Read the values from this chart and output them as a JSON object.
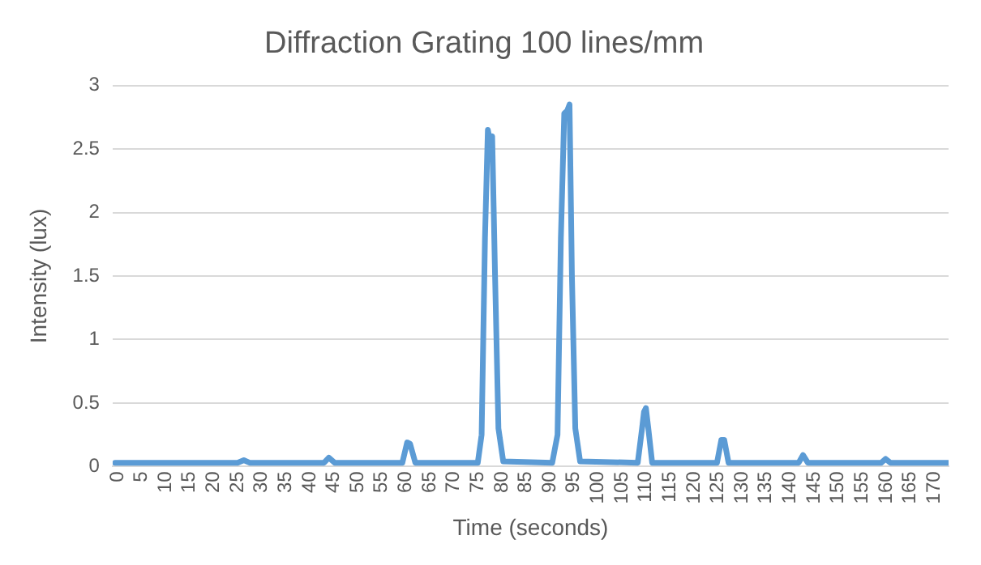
{
  "chart_data": {
    "type": "line",
    "title": "Diffraction Grating 100 lines/mm",
    "xlabel": "Time (seconds)",
    "ylabel": "Intensity (lux)",
    "x": [
      -0.5,
      25,
      26.3,
      27.5,
      43,
      44,
      45.2,
      59.3,
      60.3,
      60.9,
      62,
      75,
      75.8,
      76.5,
      77.1,
      77.6,
      78,
      78.6,
      79.3,
      80.3,
      90.5,
      91.6,
      92.3,
      93,
      93.6,
      94.1,
      94.6,
      95.3,
      96.3,
      108.3,
      109.2,
      109.6,
      110,
      110.5,
      111.3,
      124.8,
      125.7,
      126.3,
      127.2,
      141.8,
      142.7,
      143.7,
      159,
      159.9,
      160.9,
      172.9
    ],
    "series": [
      {
        "color": "#5b9bd5",
        "values": [
          0.03,
          0.03,
          0.05,
          0.03,
          0.03,
          0.07,
          0.03,
          0.03,
          0.19,
          0.18,
          0.03,
          0.03,
          0.25,
          1.8,
          2.65,
          2.55,
          2.6,
          1.5,
          0.3,
          0.04,
          0.03,
          0.25,
          1.8,
          2.78,
          2.8,
          2.85,
          1.5,
          0.3,
          0.04,
          0.03,
          0.3,
          0.43,
          0.46,
          0.3,
          0.03,
          0.03,
          0.21,
          0.21,
          0.03,
          0.03,
          0.09,
          0.03,
          0.03,
          0.06,
          0.03,
          0.03
        ]
      }
    ],
    "xlim": [
      -1,
      173
    ],
    "xticks": [
      0,
      5,
      10,
      15,
      20,
      25,
      30,
      35,
      40,
      45,
      50,
      55,
      60,
      65,
      70,
      75,
      80,
      85,
      90,
      95,
      100,
      105,
      110,
      115,
      120,
      125,
      130,
      135,
      140,
      145,
      150,
      155,
      160,
      165,
      170
    ],
    "ylim": [
      0,
      3
    ],
    "yticks": [
      0,
      0.5,
      1,
      1.5,
      2,
      2.5,
      3
    ],
    "grid": "y",
    "legend": false,
    "marker": "none",
    "line_style": "solid"
  }
}
